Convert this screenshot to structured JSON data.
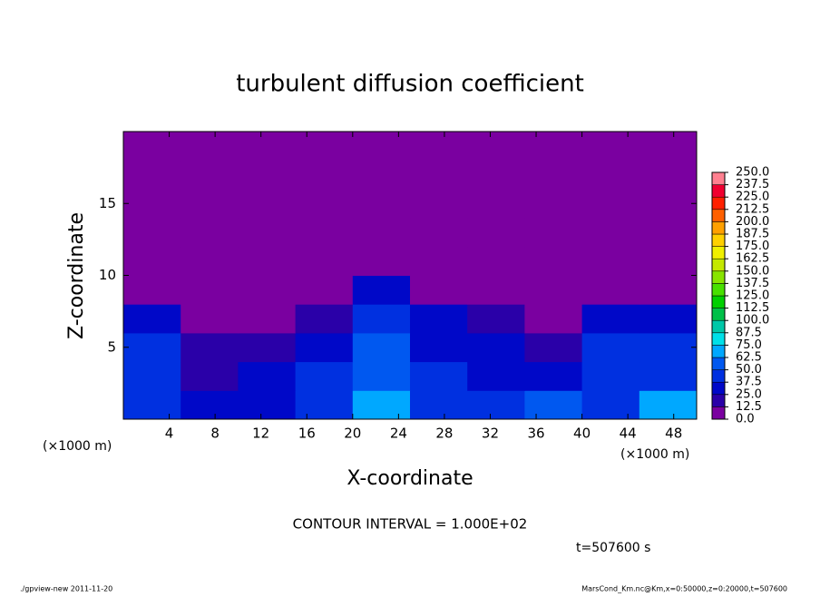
{
  "chart_data": {
    "type": "heatmap",
    "title": "turbulent diffusion coefficient",
    "xlabel": "X-coordinate",
    "ylabel": "Z-coordinate",
    "xunit": "(×1000 m)",
    "yunit": "(×1000 m)",
    "xlim": [
      0,
      50
    ],
    "ylim": [
      0,
      20
    ],
    "xticks": [
      4,
      8,
      12,
      16,
      20,
      24,
      28,
      32,
      36,
      40,
      44,
      48
    ],
    "yticks": [
      5,
      10,
      15
    ],
    "x_bins": [
      0,
      5,
      10,
      15,
      20,
      25,
      30,
      35,
      40,
      45,
      50
    ],
    "z_bins": [
      0,
      2,
      4,
      6,
      8,
      10,
      12,
      14,
      16,
      18,
      20
    ],
    "values": [
      [
        37.5,
        25,
        25,
        37.5,
        62.5,
        37.5,
        37.5,
        50,
        37.5,
        62.5
      ],
      [
        37.5,
        12.5,
        25,
        37.5,
        50,
        37.5,
        25,
        25,
        37.5,
        37.5
      ],
      [
        37.5,
        12.5,
        12.5,
        25,
        50,
        25,
        25,
        12.5,
        37.5,
        37.5
      ],
      [
        25,
        0,
        0,
        12.5,
        37.5,
        25,
        12.5,
        0,
        25,
        25
      ],
      [
        0,
        0,
        0,
        0,
        25,
        0,
        0,
        0,
        0,
        0
      ],
      [
        0,
        0,
        0,
        0,
        0,
        0,
        0,
        0,
        0,
        0
      ],
      [
        0,
        0,
        0,
        0,
        0,
        0,
        0,
        0,
        0,
        0
      ],
      [
        0,
        0,
        0,
        0,
        0,
        0,
        0,
        0,
        0,
        0
      ],
      [
        0,
        0,
        0,
        0,
        0,
        0,
        0,
        0,
        0,
        0
      ],
      [
        0,
        0,
        0,
        0,
        0,
        0,
        0,
        0,
        0,
        0
      ]
    ],
    "levels": [
      {
        "value": 0,
        "label": "0.0"
      },
      {
        "value": 12.5,
        "label": "12.5"
      },
      {
        "value": 25,
        "label": "25.0"
      },
      {
        "value": 37.5,
        "label": "37.5"
      },
      {
        "value": 50,
        "label": "50.0"
      },
      {
        "value": 62.5,
        "label": "62.5"
      },
      {
        "value": 75,
        "label": "75.0"
      },
      {
        "value": 87.5,
        "label": "87.5"
      },
      {
        "value": 100,
        "label": "100.0"
      },
      {
        "value": 112.5,
        "label": "112.5"
      },
      {
        "value": 125,
        "label": "125.0"
      },
      {
        "value": 137.5,
        "label": "137.5"
      },
      {
        "value": 150,
        "label": "150.0"
      },
      {
        "value": 162.5,
        "label": "162.5"
      },
      {
        "value": 175,
        "label": "175.0"
      },
      {
        "value": 187.5,
        "label": "187.5"
      },
      {
        "value": 200,
        "label": "200.0"
      },
      {
        "value": 212.5,
        "label": "212.5"
      },
      {
        "value": 225,
        "label": "225.0"
      },
      {
        "value": 237.5,
        "label": "237.5"
      },
      {
        "value": 250,
        "label": "250.0"
      }
    ],
    "colors": [
      "#7a00a0",
      "#2a00a8",
      "#0008c8",
      "#0030e0",
      "#0058f0",
      "#00a8ff",
      "#00e0e8",
      "#00c8a8",
      "#00c048",
      "#00d000",
      "#48e000",
      "#88e400",
      "#c4e800",
      "#f0f000",
      "#ffd000",
      "#ffa000",
      "#ff6000",
      "#ff2000",
      "#f00030",
      "#ff8090"
    ],
    "contour_note": "CONTOUR INTERVAL = 1.000E+02",
    "time_label": "t=507600 s",
    "footer_left": "./gpview-new  2011-11-20",
    "footer_right": "MarsCond_Km.nc@Km,x=0:50000,z=0:20000,t=507600"
  }
}
